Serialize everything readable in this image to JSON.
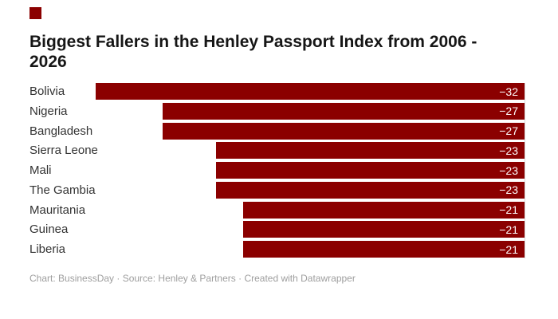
{
  "brand": {
    "logo_color": "#8b0000"
  },
  "title_lines": [
    "Biggest Fallers in the Henley Passport Index from 2006 -",
    "2026"
  ],
  "footer": "Chart: BusinessDay · Source: Henley & Partners · Created with Datawrapper",
  "chart_data": {
    "type": "bar",
    "orientation": "horizontal",
    "title": "Biggest Fallers in the Henley Passport Index from 2006 - 2026",
    "categories": [
      "Bolivia",
      "Nigeria",
      "Bangladesh",
      "Sierra Leone",
      "Mali",
      "The Gambia",
      "Mauritania",
      "Guinea",
      "Liberia"
    ],
    "values": [
      -32,
      -27,
      -27,
      -23,
      -23,
      -23,
      -21,
      -21,
      -21
    ],
    "value_labels": [
      "−32",
      "−27",
      "−27",
      "−23",
      "−23",
      "−23",
      "−21",
      "−21",
      "−21"
    ],
    "xlim": [
      -32,
      0
    ],
    "bar_color": "#8b0000",
    "value_label_color": "#ffffff",
    "category_label_color": "#333333",
    "grid": false,
    "legend": false,
    "value_labels_position": "inside-end"
  }
}
